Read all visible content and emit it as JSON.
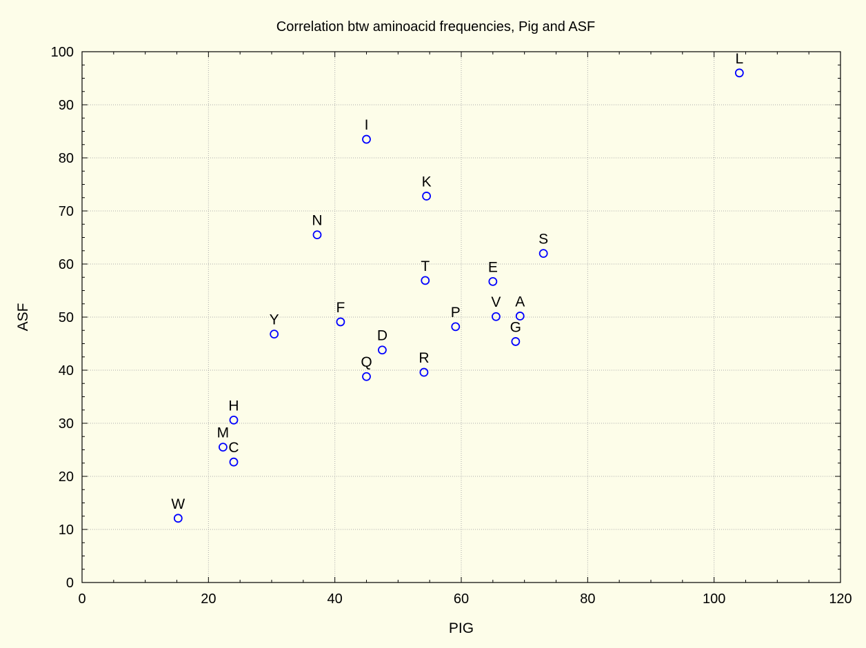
{
  "chart_data": {
    "type": "scatter",
    "title": "Correlation btw aminoacid frequencies, Pig and ASF",
    "xlabel": "PIG",
    "ylabel": "ASF",
    "xlim": [
      0,
      120
    ],
    "ylim": [
      0,
      100
    ],
    "xticks": [
      0,
      20,
      40,
      60,
      80,
      100,
      120
    ],
    "yticks": [
      0,
      10,
      20,
      30,
      40,
      50,
      60,
      70,
      80,
      90,
      100
    ],
    "grid": true,
    "marker_color": "#0000ff",
    "background_color": "#fdfde9",
    "points": [
      {
        "label": "L",
        "x": 104.0,
        "y": 96.0
      },
      {
        "label": "I",
        "x": 45.0,
        "y": 83.5
      },
      {
        "label": "K",
        "x": 54.5,
        "y": 72.8
      },
      {
        "label": "N",
        "x": 37.2,
        "y": 65.5
      },
      {
        "label": "S",
        "x": 73.0,
        "y": 62.0
      },
      {
        "label": "T",
        "x": 54.3,
        "y": 56.9
      },
      {
        "label": "E",
        "x": 65.0,
        "y": 56.7
      },
      {
        "label": "A",
        "x": 69.3,
        "y": 50.2
      },
      {
        "label": "V",
        "x": 65.5,
        "y": 50.1
      },
      {
        "label": "F",
        "x": 40.9,
        "y": 49.1
      },
      {
        "label": "P",
        "x": 59.1,
        "y": 48.2
      },
      {
        "label": "Y",
        "x": 30.4,
        "y": 46.8
      },
      {
        "label": "G",
        "x": 68.6,
        "y": 45.4
      },
      {
        "label": "D",
        "x": 47.5,
        "y": 43.8
      },
      {
        "label": "R",
        "x": 54.1,
        "y": 39.6
      },
      {
        "label": "Q",
        "x": 45.0,
        "y": 38.8
      },
      {
        "label": "H",
        "x": 24.0,
        "y": 30.6
      },
      {
        "label": "M",
        "x": 22.3,
        "y": 25.5
      },
      {
        "label": "C",
        "x": 24.0,
        "y": 22.7
      },
      {
        "label": "W",
        "x": 15.2,
        "y": 12.1
      }
    ]
  }
}
